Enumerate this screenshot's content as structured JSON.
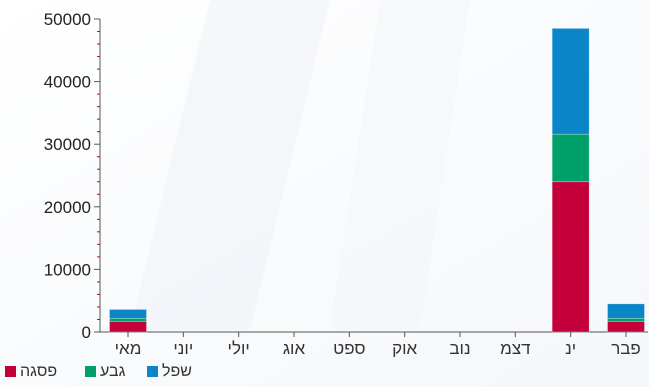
{
  "chart_data": {
    "type": "bar",
    "stacked": true,
    "categories": [
      "מאי",
      "יוני",
      "יולי",
      "אוג",
      "ספט",
      "אוק",
      "נוב",
      "דצמ",
      "ינ",
      "פבר"
    ],
    "series": [
      {
        "name": "פסגה",
        "color": "#c4003a",
        "values": [
          1700,
          0,
          0,
          0,
          0,
          0,
          0,
          0,
          24000,
          1700
        ]
      },
      {
        "name": "גבע",
        "color": "#00a06b",
        "values": [
          500,
          0,
          0,
          0,
          0,
          0,
          0,
          0,
          7600,
          500
        ]
      },
      {
        "name": "שפל",
        "color": "#0a86c8",
        "values": [
          1400,
          0,
          0,
          0,
          0,
          0,
          0,
          0,
          16900,
          2300
        ]
      }
    ],
    "ylim": [
      0,
      50000
    ],
    "yticks": [
      "0",
      "10000",
      "20000",
      "30000",
      "40000",
      "50000"
    ],
    "grid": false,
    "legend_position": "bottom-left"
  }
}
